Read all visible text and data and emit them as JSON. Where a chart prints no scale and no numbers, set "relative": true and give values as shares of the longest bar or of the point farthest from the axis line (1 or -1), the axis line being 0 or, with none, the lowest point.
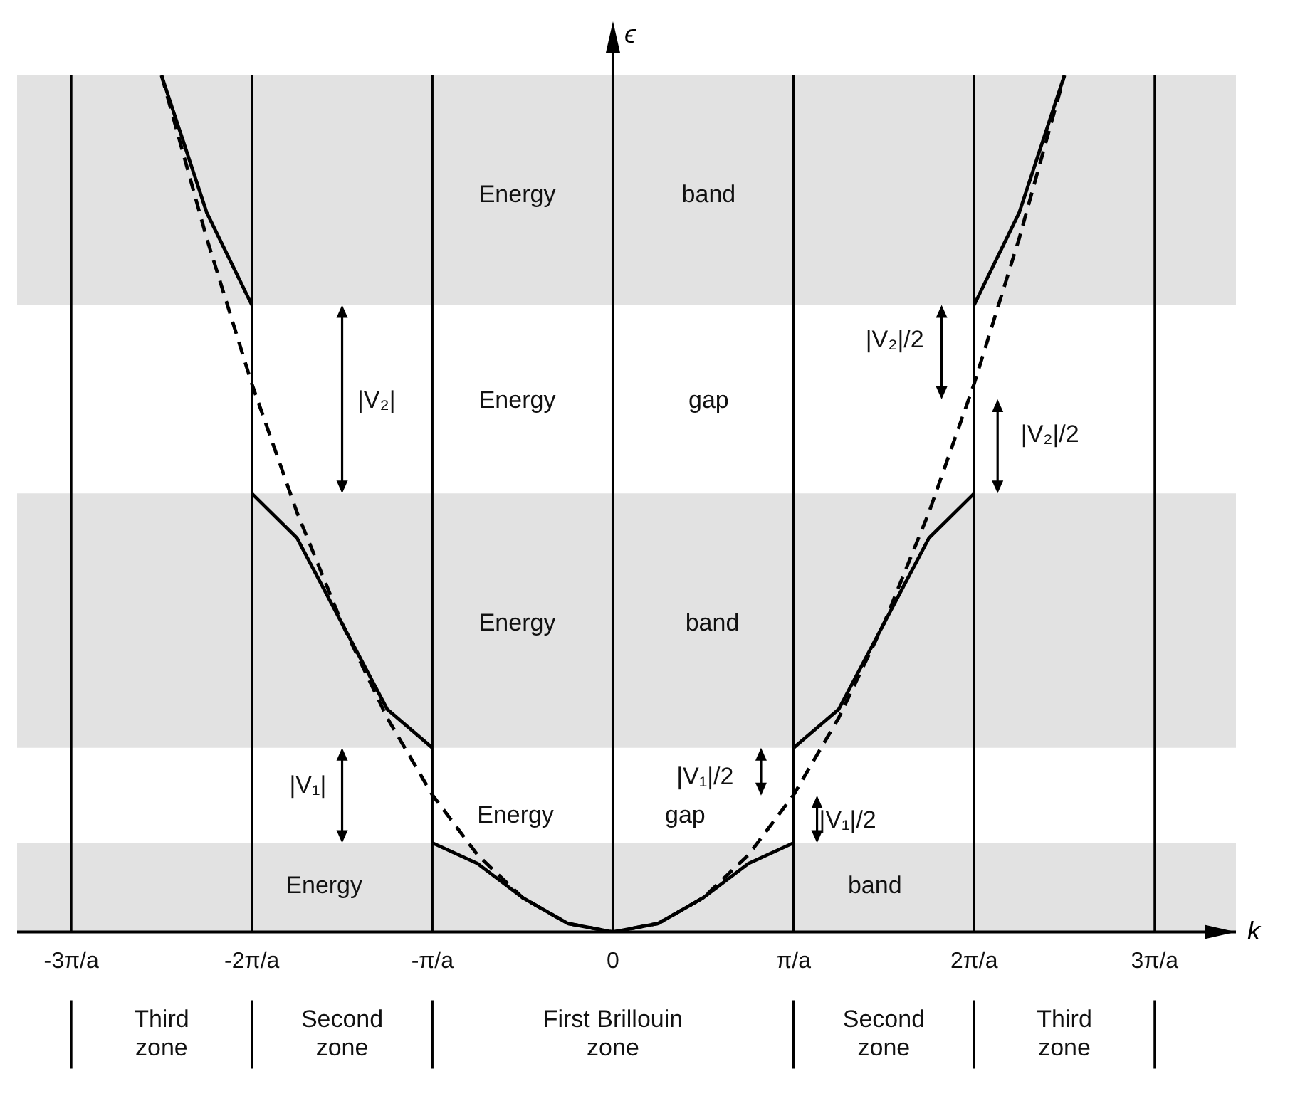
{
  "chart_data": {
    "type": "line",
    "relative": true,
    "xlabel": "k",
    "ylabel": "ϵ",
    "xlim": [
      -3.3,
      3.45
    ],
    "xticks": [
      {
        "value": -3,
        "label": "-3π/a"
      },
      {
        "value": -2,
        "label": "-2π/a"
      },
      {
        "value": -1,
        "label": "-π/a"
      },
      0,
      {
        "value": 1,
        "label": "π/a"
      },
      {
        "value": 2,
        "label": "2π/a"
      },
      {
        "value": 3,
        "label": "3π/a"
      }
    ],
    "tick_labels": "x",
    "grid": false,
    "legend": false,
    "marker": "none",
    "series": [
      {
        "color": "#000000",
        "line_style": "dashed",
        "x": [
          -2.5,
          -2.25,
          -2,
          -1.75,
          -1.5,
          -1.25,
          -1,
          -0.75,
          -0.5,
          -0.25,
          0,
          0.25,
          0.5,
          0.75,
          1,
          1.25,
          1.5,
          1.75,
          2,
          2.25,
          2.5
        ],
        "values": [
          1.0,
          0.81,
          0.64,
          0.49,
          0.36,
          0.25,
          0.16,
          0.09,
          0.04,
          0.01,
          0,
          0.01,
          0.04,
          0.09,
          0.16,
          0.25,
          0.36,
          0.49,
          0.64,
          0.81,
          1.0
        ]
      },
      {
        "color": "#000000",
        "line_style": "solid",
        "x": [
          -2.5,
          -2.25,
          -2
        ],
        "values": [
          1.0,
          0.84,
          0.732
        ]
      },
      {
        "color": "#000000",
        "line_style": "solid",
        "x": [
          -2,
          -1.75,
          -1.5,
          -1.25,
          -1
        ],
        "values": [
          0.512,
          0.46,
          0.36,
          0.26,
          0.215
        ]
      },
      {
        "color": "#000000",
        "line_style": "solid",
        "x": [
          -1,
          -0.75,
          -0.5,
          -0.25,
          0,
          0.25,
          0.5,
          0.75,
          1
        ],
        "values": [
          0.104,
          0.08,
          0.04,
          0.01,
          0,
          0.01,
          0.04,
          0.08,
          0.104
        ]
      },
      {
        "color": "#000000",
        "line_style": "solid",
        "x": [
          1,
          1.25,
          1.5,
          1.75,
          2
        ],
        "values": [
          0.215,
          0.26,
          0.36,
          0.46,
          0.512
        ]
      },
      {
        "color": "#000000",
        "line_style": "solid",
        "x": [
          2,
          2.25,
          2.5
        ],
        "values": [
          0.732,
          0.84,
          1.0
        ]
      }
    ],
    "bands": [
      {
        "axis": "y",
        "from": 0,
        "to": 0.104,
        "color": "#e2e2e2"
      },
      {
        "axis": "y",
        "from": 0.215,
        "to": 0.512,
        "color": "#e2e2e2"
      },
      {
        "axis": "y",
        "from": 0.732,
        "to": 1.0,
        "color": "#e2e2e2"
      }
    ],
    "ref_lines": [
      {
        "axis": "x",
        "value": -3,
        "color": "#000000"
      },
      {
        "axis": "x",
        "value": -2,
        "color": "#000000"
      },
      {
        "axis": "x",
        "value": -1,
        "color": "#000000"
      },
      {
        "axis": "x",
        "value": 1,
        "color": "#000000"
      },
      {
        "axis": "x",
        "value": 2,
        "color": "#000000"
      },
      {
        "axis": "x",
        "value": 3,
        "color": "#000000"
      }
    ],
    "annotations": [
      "Energy",
      "band",
      "Energy",
      "gap",
      "Energy",
      "band",
      "Energy",
      "gap",
      "Energy",
      "band",
      "|V₂|",
      "|V₁|",
      "|V₂|/2",
      "|V₂|/2",
      "|V₁|/2",
      "|V₁|/2",
      "Third\nzone",
      "Second\nzone",
      "First Brillouin\nzone",
      "Second\nzone",
      "Third\nzone"
    ]
  }
}
